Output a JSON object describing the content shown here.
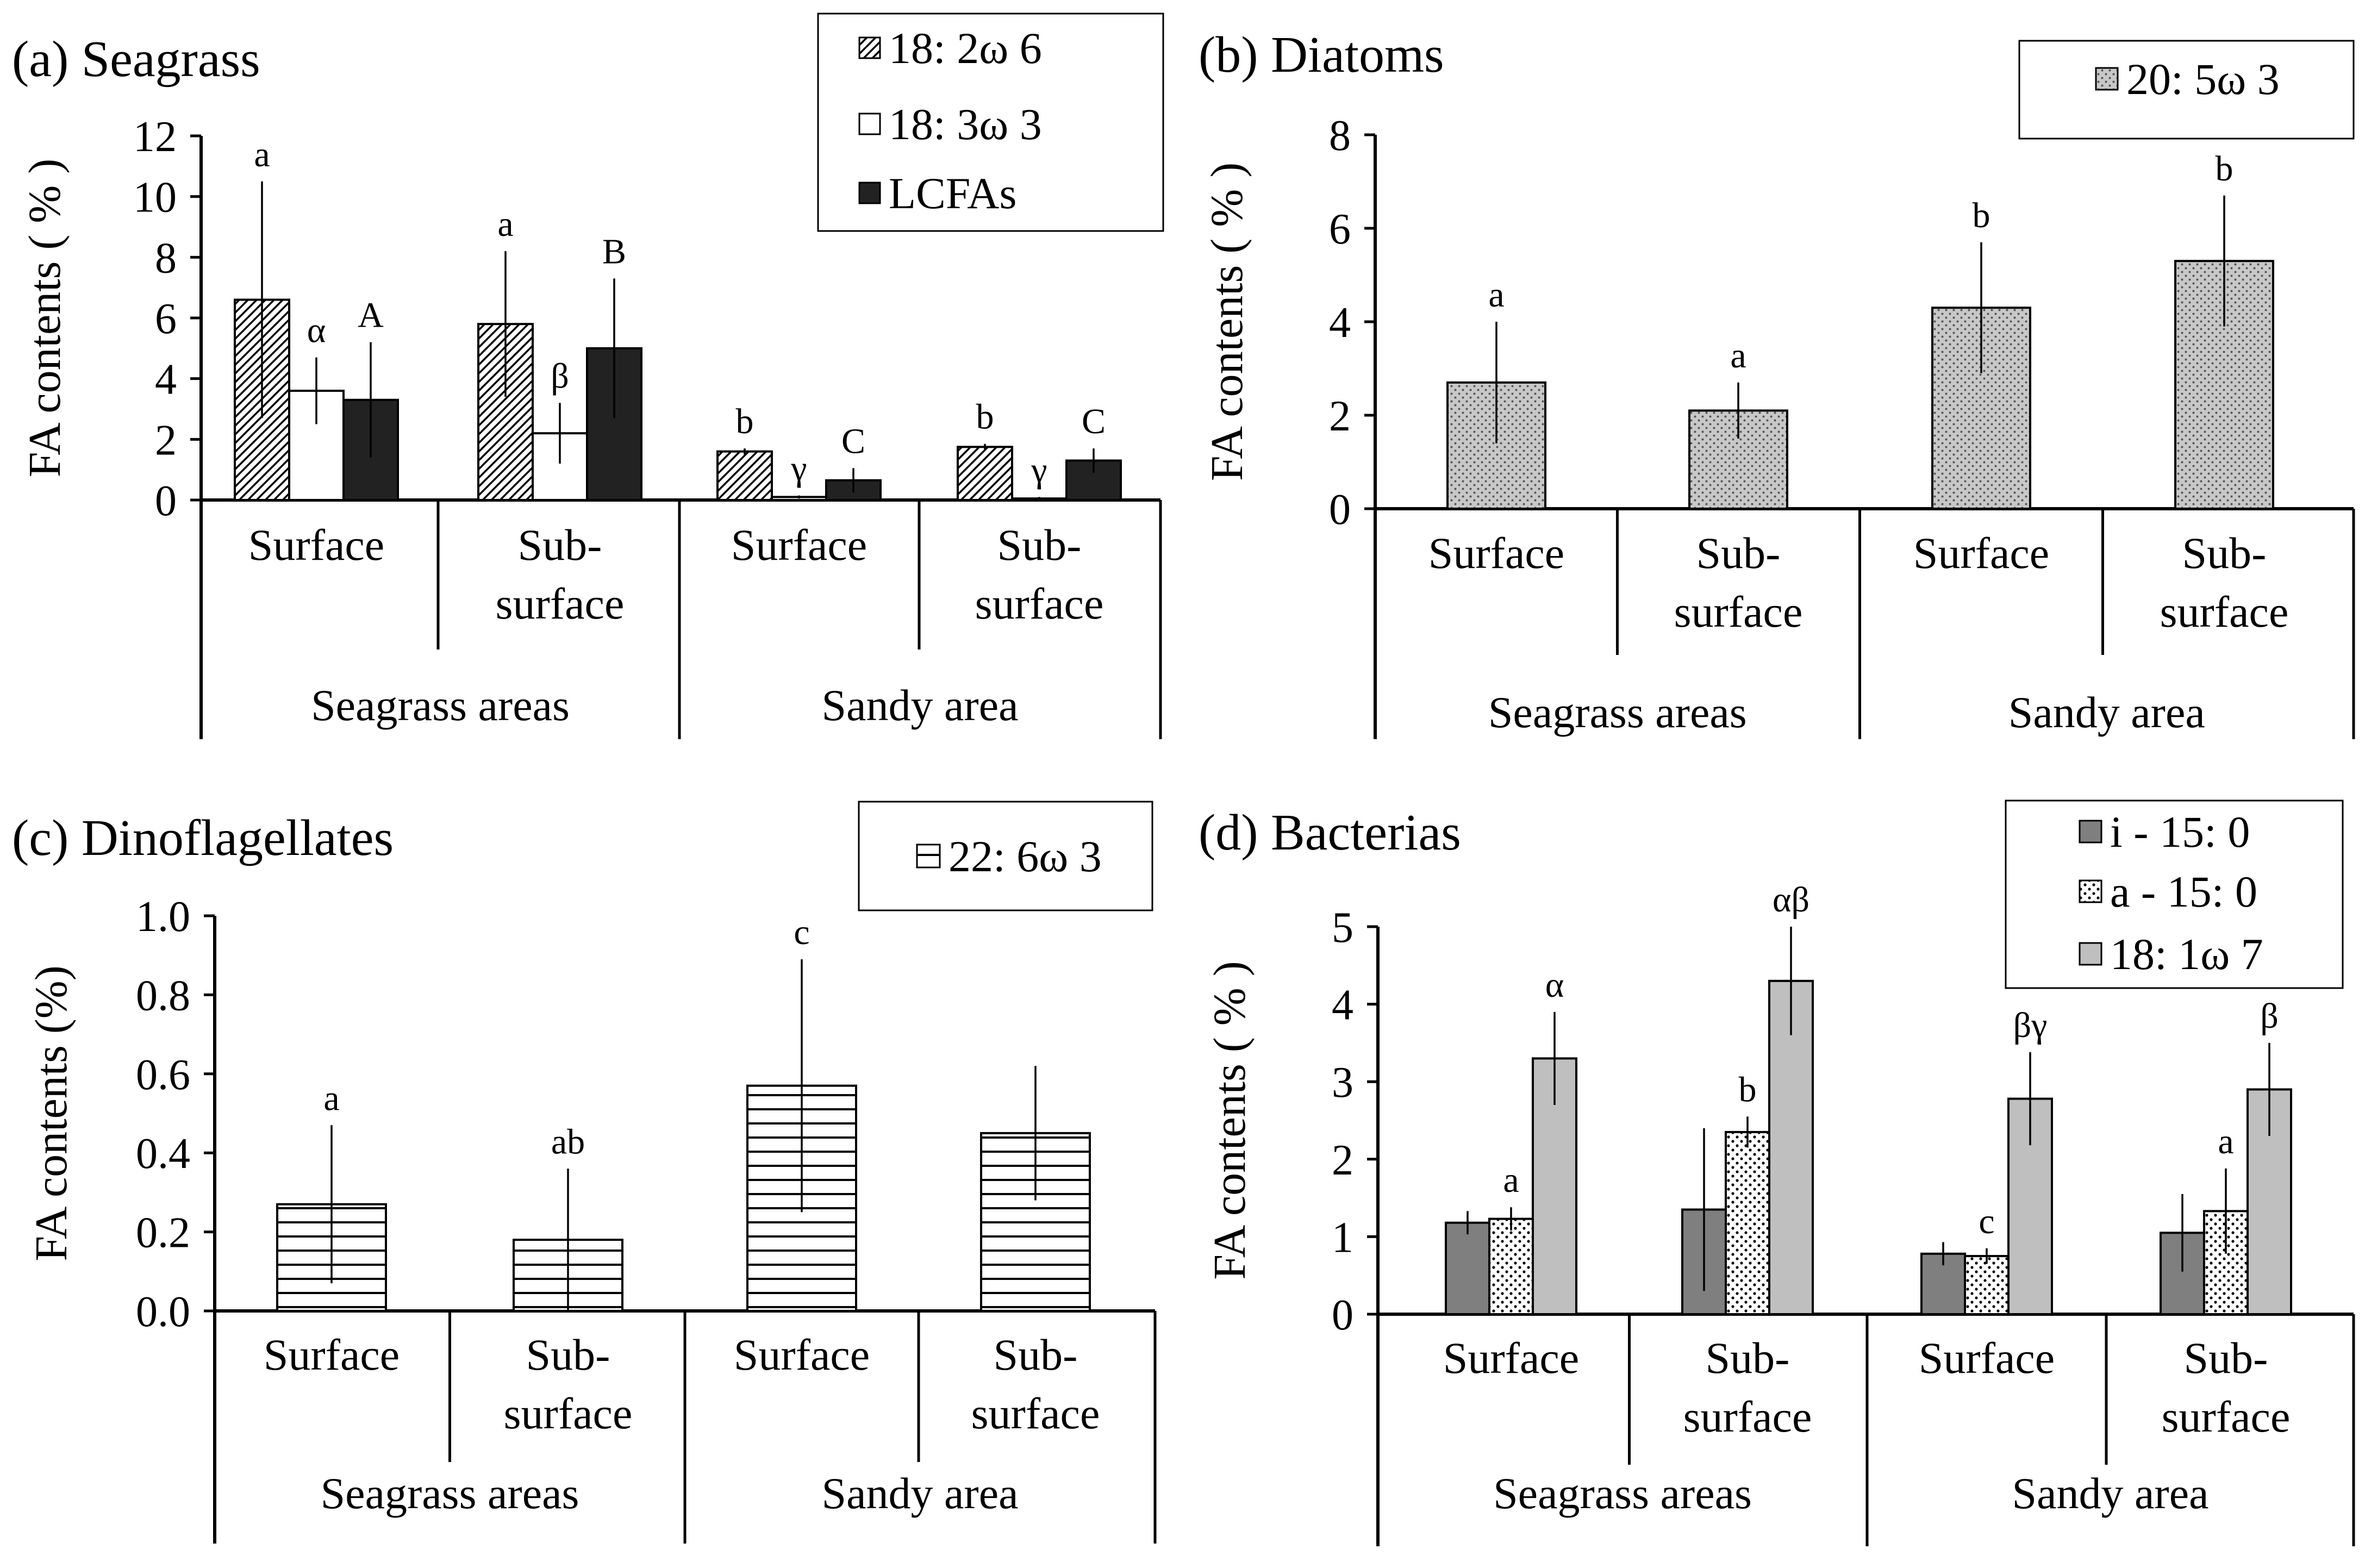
{
  "chart_data": [
    {
      "panel": "a",
      "type": "bar",
      "title": "(a) Seagrass",
      "ylabel": "FA contents ( % )",
      "ylim": [
        0,
        12
      ],
      "yticks": [
        0,
        2,
        4,
        6,
        8,
        10,
        12
      ],
      "ytick_labels": [
        "0",
        "2",
        "4",
        "6",
        "8",
        "10",
        "12"
      ],
      "categories": [
        "Surface",
        "Sub-\nsurface",
        "Surface",
        "Sub-\nsurface"
      ],
      "groups": [
        "Seagrass areas",
        "Sandy area"
      ],
      "legend": {
        "placement": "top-right"
      },
      "series": [
        {
          "name": "18: 2ω 6",
          "pattern": "diag",
          "color": "#ffffff",
          "values": [
            6.6,
            5.8,
            1.6,
            1.75
          ],
          "errors": [
            3.9,
            2.4,
            0.1,
            0.1
          ],
          "labels": [
            "a",
            "a",
            "b",
            "b"
          ]
        },
        {
          "name": "18: 3ω 3",
          "pattern": "none",
          "color": "#ffffff",
          "values": [
            3.6,
            2.2,
            0.1,
            0.05
          ],
          "errors": [
            1.1,
            1.0,
            0.05,
            0.05
          ],
          "labels": [
            "α",
            "β",
            "γ",
            "γ"
          ]
        },
        {
          "name": "LCFAs",
          "pattern": "none",
          "color": "#222222",
          "values": [
            3.3,
            5.0,
            0.65,
            1.3
          ],
          "errors": [
            1.9,
            2.3,
            0.4,
            0.4
          ],
          "labels": [
            "A",
            "B",
            "C",
            "C"
          ]
        }
      ]
    },
    {
      "panel": "b",
      "type": "bar",
      "title": "(b) Diatoms",
      "ylabel": "FA contents ( % )",
      "ylim": [
        0,
        8
      ],
      "yticks": [
        0,
        2,
        4,
        6,
        8
      ],
      "ytick_labels": [
        "0",
        "2",
        "4",
        "6",
        "8"
      ],
      "categories": [
        "Surface",
        "Sub-\nsurface",
        "Surface",
        "Sub-\nsurface"
      ],
      "groups": [
        "Seagrass areas",
        "Sandy area"
      ],
      "legend": {
        "placement": "top-right"
      },
      "series": [
        {
          "name": "20: 5ω 3",
          "pattern": "dots",
          "color": "#c8c8c8",
          "values": [
            2.7,
            2.1,
            4.3,
            5.3
          ],
          "errors": [
            1.3,
            0.6,
            1.4,
            1.4
          ],
          "labels": [
            "a",
            "a",
            "b",
            "b"
          ]
        }
      ]
    },
    {
      "panel": "c",
      "type": "bar",
      "title": "(c) Dinoflagellates",
      "ylabel": "FA contents (%)",
      "ylim": [
        0,
        1.0
      ],
      "yticks": [
        0,
        0.2,
        0.4,
        0.6,
        0.8,
        1.0
      ],
      "ytick_labels": [
        "0.0",
        "0.2",
        "0.4",
        "0.6",
        "0.8",
        "1.0"
      ],
      "categories": [
        "Surface",
        "Sub-\nsurface",
        "Surface",
        "Sub-\nsurface"
      ],
      "groups": [
        "Seagrass areas",
        "Sandy area"
      ],
      "legend": {
        "placement": "top-right"
      },
      "series": [
        {
          "name": "22: 6ω 3",
          "pattern": "hlines",
          "color": "#ffffff",
          "values": [
            0.27,
            0.18,
            0.57,
            0.45
          ],
          "errors": [
            0.2,
            0.18,
            0.32,
            0.17
          ],
          "labels": [
            "a",
            "ab",
            "c",
            ""
          ]
        }
      ]
    },
    {
      "panel": "d",
      "type": "bar",
      "title": "(d) Bacterias",
      "ylabel": "FA contents ( % )",
      "ylim": [
        0,
        5
      ],
      "yticks": [
        0,
        1,
        2,
        3,
        4,
        5
      ],
      "ytick_labels": [
        "0",
        "1",
        "2",
        "3",
        "4",
        "5"
      ],
      "categories": [
        "Surface",
        "Sub-\nsurface",
        "Surface",
        "Sub-\nsurface"
      ],
      "groups": [
        "Seagrass areas",
        "Sandy area"
      ],
      "legend": {
        "placement": "top-right"
      },
      "series": [
        {
          "name": "i - 15: 0",
          "pattern": "none",
          "color": "#7f7f7f",
          "values": [
            1.18,
            1.35,
            0.78,
            1.05
          ],
          "errors": [
            0.15,
            1.05,
            0.15,
            0.5
          ],
          "labels": [
            "",
            "",
            "",
            ""
          ]
        },
        {
          "name": "a - 15: 0",
          "pattern": "dots",
          "color": "#ffffff",
          "values": [
            1.23,
            2.35,
            0.75,
            1.33
          ],
          "errors": [
            0.15,
            0.2,
            0.1,
            0.55
          ],
          "labels": [
            "a",
            "b",
            "c",
            "a"
          ]
        },
        {
          "name": "18: 1ω 7",
          "pattern": "none",
          "color": "#bfbfbf",
          "values": [
            3.3,
            4.3,
            2.78,
            2.9
          ],
          "errors": [
            0.6,
            0.7,
            0.6,
            0.6
          ],
          "labels": [
            "α",
            "αβ",
            "βγ",
            "β"
          ]
        }
      ]
    }
  ]
}
